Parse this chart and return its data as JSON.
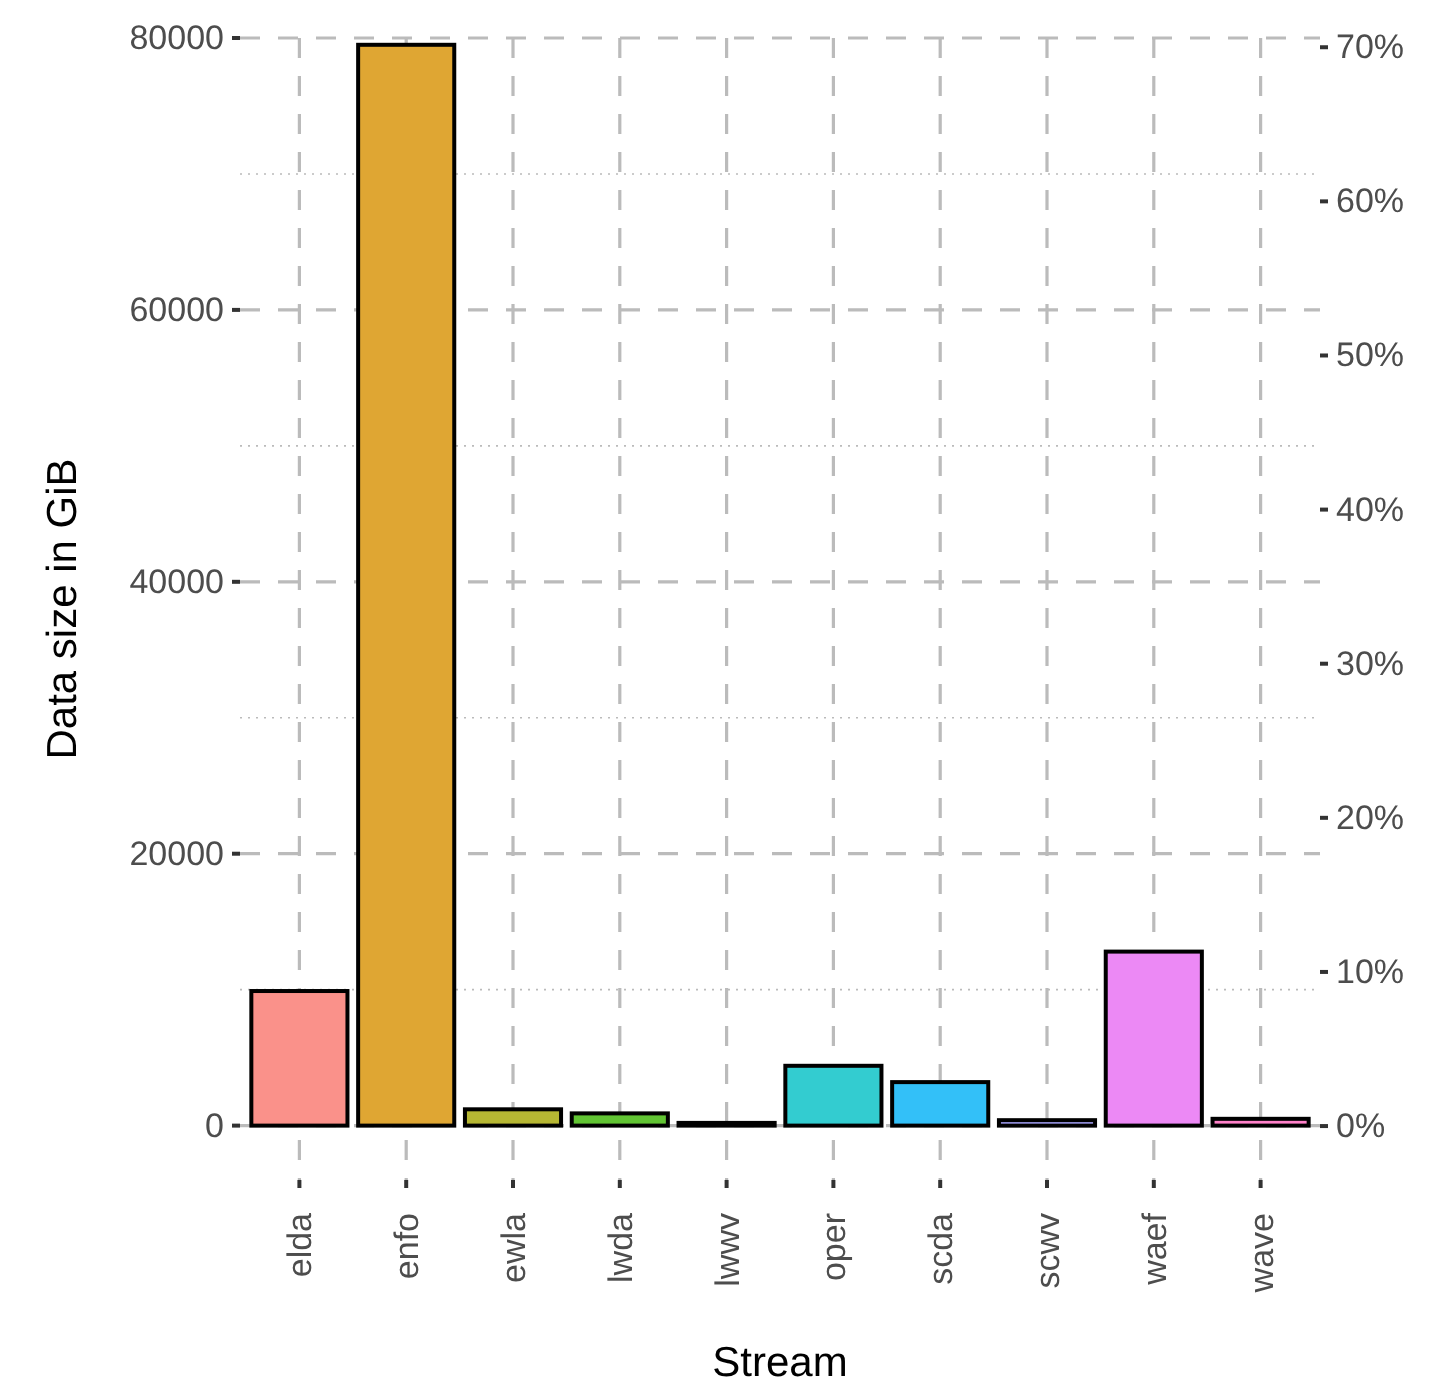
{
  "chart_data": {
    "type": "bar",
    "xlabel": "Stream",
    "ylabel": "Data size in GiB",
    "categories": [
      "elda",
      "enfo",
      "ewla",
      "lwda",
      "lwwv",
      "oper",
      "scda",
      "scwv",
      "waef",
      "wave"
    ],
    "values": [
      9900,
      79500,
      1200,
      900,
      200,
      4400,
      3200,
      400,
      12800,
      500
    ],
    "colors": [
      "#fa918a",
      "#dfa633",
      "#b6b733",
      "#61c433",
      "#33cc97",
      "#33ccd0",
      "#33c0f8",
      "#aaa6ff",
      "#ec89f5",
      "#ff81c9"
    ],
    "ylim": [
      -4000,
      80000
    ],
    "yticks": [
      0,
      20000,
      40000,
      60000,
      80000
    ],
    "y2lim": [
      -3.5,
      70.6
    ],
    "y2ticks": [
      {
        "value": 0,
        "label": "0%"
      },
      {
        "value": 10,
        "label": "10%"
      },
      {
        "value": 20,
        "label": "20%"
      },
      {
        "value": 30,
        "label": "30%"
      },
      {
        "value": 40,
        "label": "40%"
      },
      {
        "value": 50,
        "label": "50%"
      },
      {
        "value": 60,
        "label": "60%"
      },
      {
        "value": 70,
        "label": "70%"
      }
    ],
    "grid": true
  }
}
